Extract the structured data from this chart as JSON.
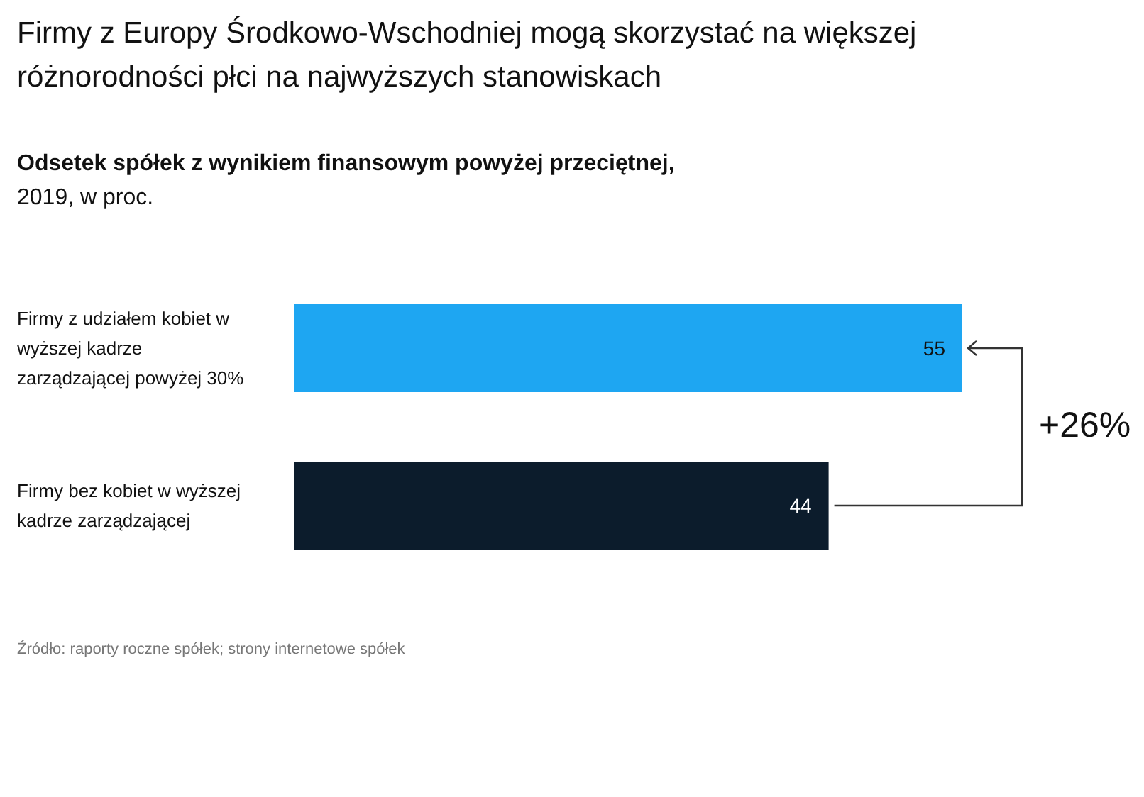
{
  "chart_data": {
    "type": "bar",
    "orientation": "horizontal",
    "title": "Firmy z Europy Środkowo-Wschodniej mogą skorzystać na większej różnorodności płci na najwyższych stanowiskach",
    "subtitle": "Odsetek spółek z wynikiem finansowym powyżej przeciętnej,\n2019, w proc.",
    "categories": [
      "Firmy z udziałem kobiet w wyższej kadrze zarządzającej powyżej 30%",
      "Firmy bez kobiet w wyższej kadrze zarządzającej"
    ],
    "values": [
      55,
      44
    ],
    "colors": [
      "#1ea6f2",
      "#0c1c2c"
    ],
    "data_labels": true,
    "annotations": [
      "+26%",
      "Źródło: raporty roczne spółek; strony internetowe spółek"
    ]
  }
}
